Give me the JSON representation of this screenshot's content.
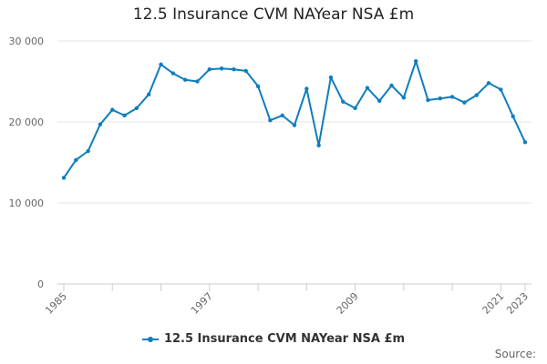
{
  "chart_data": {
    "type": "line",
    "title": "12.5 Insurance CVM NAYear NSA £m",
    "x": [
      1985,
      1986,
      1987,
      1988,
      1989,
      1990,
      1991,
      1992,
      1993,
      1994,
      1995,
      1996,
      1997,
      1998,
      1999,
      2000,
      2001,
      2002,
      2003,
      2004,
      2005,
      2006,
      2007,
      2008,
      2009,
      2010,
      2011,
      2012,
      2013,
      2014,
      2015,
      2016,
      2017,
      2018,
      2019,
      2020,
      2021,
      2022,
      2023
    ],
    "series": [
      {
        "name": "12.5 Insurance CVM NAYear NSA £m",
        "values": [
          13100,
          15300,
          16400,
          19700,
          21500,
          20800,
          21700,
          23400,
          27100,
          26000,
          25200,
          25000,
          26500,
          26600,
          26500,
          26300,
          24400,
          20200,
          20800,
          19600,
          24100,
          17100,
          25500,
          22500,
          21700,
          24200,
          22600,
          24500,
          23000,
          27500,
          22700,
          22900,
          23100,
          22400,
          23300,
          24800,
          24000,
          20700,
          17500
        ]
      }
    ],
    "ylim": [
      0,
      30000
    ],
    "yticks": [
      0,
      10000,
      20000,
      30000
    ],
    "ytick_labels": [
      "0",
      "10 000",
      "20 000",
      "30 000"
    ],
    "xtick_labels": [
      "1985",
      "1997",
      "2009",
      "2021",
      "2023"
    ],
    "grid": true,
    "legend_position": "bottom-center",
    "color": "#0f7dbd"
  },
  "credits": "Source:"
}
